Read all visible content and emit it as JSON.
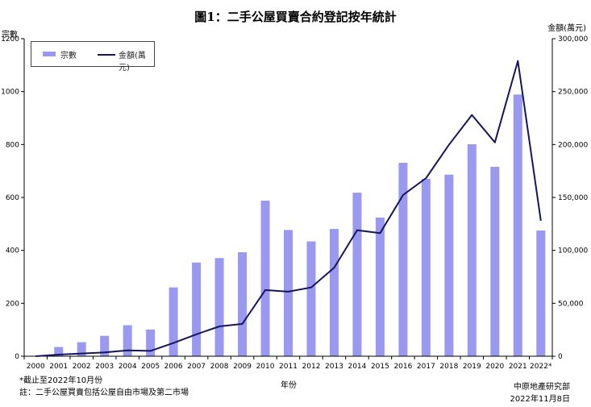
{
  "chart_data": {
    "type": "bar",
    "title": "圖1：二手公屋買賣合約登記按年統計",
    "xlabel": "年份",
    "ylabel_left": "宗數",
    "ylabel_right": "金額(萬元)",
    "categories": [
      "2000",
      "2001",
      "2002",
      "2003",
      "2004",
      "2005",
      "2006",
      "2007",
      "2008",
      "2009",
      "2010",
      "2011",
      "2012",
      "2013",
      "2014",
      "2015",
      "2016",
      "2017",
      "2018",
      "2019",
      "2020",
      "2021",
      "2022*"
    ],
    "series": [
      {
        "name": "宗數",
        "type": "bar",
        "axis": "left",
        "color": "#9999f2",
        "values": [
          0,
          35,
          53,
          77,
          117,
          101,
          260,
          354,
          371,
          393,
          588,
          477,
          434,
          481,
          618,
          524,
          731,
          670,
          686,
          801,
          716,
          989,
          475
        ]
      },
      {
        "name": "金額(萬元)",
        "type": "line",
        "axis": "right",
        "color": "#15155c",
        "values": [
          0,
          1500,
          2600,
          3600,
          5500,
          5000,
          12500,
          20700,
          28200,
          30500,
          62500,
          61000,
          65000,
          83700,
          119100,
          116300,
          152300,
          168300,
          199700,
          228000,
          202000,
          279000,
          128000
        ]
      }
    ],
    "ylim_left": [
      0,
      1200
    ],
    "yticks_left": [
      "0",
      "200",
      "400",
      "600",
      "800",
      "1000",
      "1200"
    ],
    "ylim_right": [
      0,
      300000
    ],
    "yticks_right": [
      "0",
      "50,000",
      "100,000",
      "150,000",
      "200,000",
      "250,000",
      "300,000"
    ],
    "grid": false,
    "legend": "top-left"
  },
  "notes": {
    "asterisk": "*截止至2022年10月份",
    "footnote": "註：二手公屋買賣包括公屋自由市場及第二市場",
    "source": "中原地產研究部",
    "date": "2022年11月8日"
  }
}
